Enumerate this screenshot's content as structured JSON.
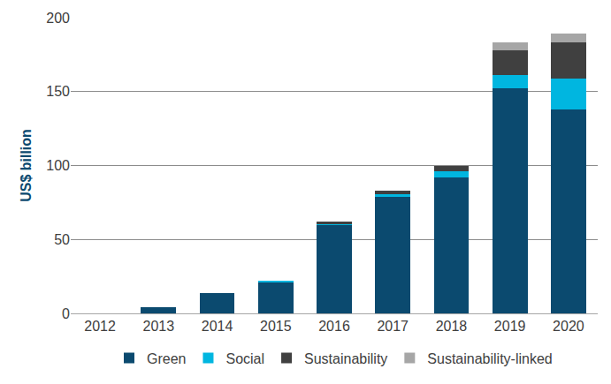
{
  "chart_data": {
    "type": "bar",
    "stacked": true,
    "grid": true,
    "legend": "bottom",
    "y_label": "US$ billion",
    "categories": [
      "2012",
      "2013",
      "2014",
      "2015",
      "2016",
      "2017",
      "2018",
      "2019",
      "2020"
    ],
    "series": [
      {
        "name": "Green",
        "color": "#0b4a6f",
        "values": [
          0,
          4,
          14,
          21,
          60,
          79,
          92,
          152,
          138
        ]
      },
      {
        "name": "Social",
        "color": "#00b6e0",
        "values": [
          0,
          0,
          0,
          1,
          0.5,
          1.5,
          4,
          9,
          21
        ]
      },
      {
        "name": "Sustainability",
        "color": "#404040",
        "values": [
          0,
          0,
          0,
          0,
          1.5,
          2.5,
          4,
          17,
          24
        ]
      },
      {
        "name": "Sustainability-linked",
        "color": "#a6a6a6",
        "values": [
          0,
          0,
          0,
          0,
          0,
          0,
          0,
          5,
          6
        ]
      }
    ],
    "ylim": [
      0,
      200
    ],
    "yticks": [
      0,
      50,
      100,
      150,
      200
    ]
  }
}
